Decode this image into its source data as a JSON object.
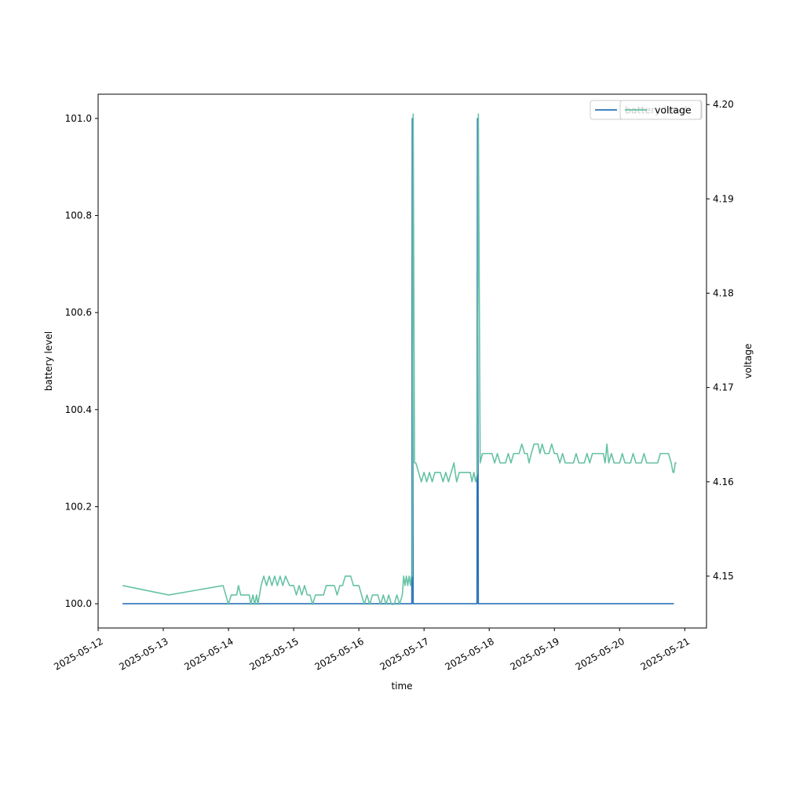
{
  "chart_data": {
    "type": "line",
    "title": "",
    "xlabel": "time",
    "ylabel_left": "battery level",
    "ylabel_right": "voltage",
    "x_tick_labels": [
      "2025-05-12",
      "2025-05-13",
      "2025-05-14",
      "2025-05-15",
      "2025-05-16",
      "2025-05-17",
      "2025-05-18",
      "2025-05-19",
      "2025-05-20",
      "2025-05-21"
    ],
    "x_range": [
      "2025-05-12T00:00",
      "2025-05-21T08:00"
    ],
    "y_left_ticks": [
      "100.0",
      "100.2",
      "100.4",
      "100.6",
      "100.8",
      "101.0"
    ],
    "y_left_range": [
      99.95,
      101.05
    ],
    "y_right_ticks": [
      "4.15",
      "4.16",
      "4.17",
      "4.18",
      "4.19",
      "4.20"
    ],
    "y_right_range": [
      4.1445,
      4.2011
    ],
    "grid": false,
    "legend_position": "top-right",
    "series": [
      {
        "name": "battery level",
        "axis": "left",
        "color": "#2a72b8",
        "points": [
          [
            "2025-05-12T09:00",
            100.0
          ],
          [
            "2025-05-16T19:30",
            100.0
          ],
          [
            "2025-05-16T19:40",
            101.0
          ],
          [
            "2025-05-16T20:00",
            100.0
          ],
          [
            "2025-05-17T19:30",
            100.0
          ],
          [
            "2025-05-17T19:40",
            101.0
          ],
          [
            "2025-05-17T20:00",
            100.0
          ],
          [
            "2025-05-20T20:00",
            100.0
          ]
        ]
      },
      {
        "name": "voltage",
        "axis": "right",
        "color": "#66c2a5",
        "points": [
          [
            "2025-05-12T09:00",
            4.149
          ],
          [
            "2025-05-13T02:00",
            4.148
          ],
          [
            "2025-05-13T22:00",
            4.149
          ],
          [
            "2025-05-13T23:00",
            4.148
          ],
          [
            "2025-05-14T00:00",
            4.147
          ],
          [
            "2025-05-14T01:00",
            4.148
          ],
          [
            "2025-05-14T03:00",
            4.148
          ],
          [
            "2025-05-14T03:40",
            4.149
          ],
          [
            "2025-05-14T04:30",
            4.148
          ],
          [
            "2025-05-14T07:40",
            4.148
          ],
          [
            "2025-05-14T08:10",
            4.147
          ],
          [
            "2025-05-14T09:00",
            4.148
          ],
          [
            "2025-05-14T09:40",
            4.147
          ],
          [
            "2025-05-14T10:20",
            4.148
          ],
          [
            "2025-05-14T10:50",
            4.147
          ],
          [
            "2025-05-14T12:00",
            4.149
          ],
          [
            "2025-05-14T13:00",
            4.15
          ],
          [
            "2025-05-14T14:00",
            4.149
          ],
          [
            "2025-05-14T15:00",
            4.15
          ],
          [
            "2025-05-14T16:00",
            4.149
          ],
          [
            "2025-05-14T17:00",
            4.15
          ],
          [
            "2025-05-14T18:00",
            4.149
          ],
          [
            "2025-05-14T19:00",
            4.15
          ],
          [
            "2025-05-14T20:00",
            4.149
          ],
          [
            "2025-05-14T21:00",
            4.15
          ],
          [
            "2025-05-14T22:30",
            4.149
          ],
          [
            "2025-05-15T00:00",
            4.149
          ],
          [
            "2025-05-15T01:00",
            4.148
          ],
          [
            "2025-05-15T02:00",
            4.149
          ],
          [
            "2025-05-15T03:00",
            4.148
          ],
          [
            "2025-05-15T04:00",
            4.149
          ],
          [
            "2025-05-15T05:00",
            4.148
          ],
          [
            "2025-05-15T06:00",
            4.148
          ],
          [
            "2025-05-15T07:00",
            4.147
          ],
          [
            "2025-05-15T08:00",
            4.148
          ],
          [
            "2025-05-15T11:00",
            4.148
          ],
          [
            "2025-05-15T12:00",
            4.149
          ],
          [
            "2025-05-15T15:00",
            4.149
          ],
          [
            "2025-05-15T16:00",
            4.148
          ],
          [
            "2025-05-15T17:00",
            4.149
          ],
          [
            "2025-05-15T18:00",
            4.149
          ],
          [
            "2025-05-15T19:00",
            4.15
          ],
          [
            "2025-05-15T21:00",
            4.15
          ],
          [
            "2025-05-15T22:00",
            4.149
          ],
          [
            "2025-05-16T00:00",
            4.149
          ],
          [
            "2025-05-16T01:00",
            4.148
          ],
          [
            "2025-05-16T02:00",
            4.147
          ],
          [
            "2025-05-16T03:00",
            4.148
          ],
          [
            "2025-05-16T04:00",
            4.147
          ],
          [
            "2025-05-16T05:00",
            4.148
          ],
          [
            "2025-05-16T07:00",
            4.148
          ],
          [
            "2025-05-16T08:00",
            4.147
          ],
          [
            "2025-05-16T09:00",
            4.148
          ],
          [
            "2025-05-16T10:00",
            4.147
          ],
          [
            "2025-05-16T11:00",
            4.148
          ],
          [
            "2025-05-16T12:00",
            4.147
          ],
          [
            "2025-05-16T13:00",
            4.147
          ],
          [
            "2025-05-16T14:00",
            4.148
          ],
          [
            "2025-05-16T15:00",
            4.147
          ],
          [
            "2025-05-16T16:00",
            4.148
          ],
          [
            "2025-05-16T16:30",
            4.15
          ],
          [
            "2025-05-16T17:00",
            4.149
          ],
          [
            "2025-05-16T17:30",
            4.15
          ],
          [
            "2025-05-16T18:00",
            4.149
          ],
          [
            "2025-05-16T18:30",
            4.15
          ],
          [
            "2025-05-16T19:00",
            4.149
          ],
          [
            "2025-05-16T19:20",
            4.15
          ],
          [
            "2025-05-16T19:40",
            4.15
          ],
          [
            "2025-05-16T20:00",
            4.199
          ],
          [
            "2025-05-16T20:30",
            4.162
          ],
          [
            "2025-05-16T21:00",
            4.162
          ],
          [
            "2025-05-16T22:00",
            4.161
          ],
          [
            "2025-05-16T23:00",
            4.16
          ],
          [
            "2025-05-17T00:00",
            4.161
          ],
          [
            "2025-05-17T01:00",
            4.16
          ],
          [
            "2025-05-17T02:00",
            4.161
          ],
          [
            "2025-05-17T03:00",
            4.16
          ],
          [
            "2025-05-17T04:00",
            4.161
          ],
          [
            "2025-05-17T06:00",
            4.161
          ],
          [
            "2025-05-17T07:00",
            4.16
          ],
          [
            "2025-05-17T08:00",
            4.161
          ],
          [
            "2025-05-17T09:00",
            4.16
          ],
          [
            "2025-05-17T10:00",
            4.161
          ],
          [
            "2025-05-17T11:00",
            4.162
          ],
          [
            "2025-05-17T12:00",
            4.16
          ],
          [
            "2025-05-17T13:00",
            4.161
          ],
          [
            "2025-05-17T17:00",
            4.161
          ],
          [
            "2025-05-17T17:40",
            4.16
          ],
          [
            "2025-05-17T18:20",
            4.161
          ],
          [
            "2025-05-17T19:00",
            4.16
          ],
          [
            "2025-05-17T19:40",
            4.161
          ],
          [
            "2025-05-17T20:00",
            4.199
          ],
          [
            "2025-05-17T20:40",
            4.162
          ],
          [
            "2025-05-17T21:30",
            4.163
          ],
          [
            "2025-05-18T01:00",
            4.163
          ],
          [
            "2025-05-18T02:00",
            4.162
          ],
          [
            "2025-05-18T03:00",
            4.163
          ],
          [
            "2025-05-18T04:00",
            4.162
          ],
          [
            "2025-05-18T06:00",
            4.162
          ],
          [
            "2025-05-18T07:00",
            4.163
          ],
          [
            "2025-05-18T08:00",
            4.162
          ],
          [
            "2025-05-18T09:00",
            4.163
          ],
          [
            "2025-05-18T11:00",
            4.163
          ],
          [
            "2025-05-18T12:00",
            4.164
          ],
          [
            "2025-05-18T13:00",
            4.163
          ],
          [
            "2025-05-18T14:00",
            4.163
          ],
          [
            "2025-05-18T14:40",
            4.162
          ],
          [
            "2025-05-18T15:30",
            4.163
          ],
          [
            "2025-05-18T16:30",
            4.164
          ],
          [
            "2025-05-18T18:00",
            4.164
          ],
          [
            "2025-05-18T18:40",
            4.163
          ],
          [
            "2025-05-18T19:30",
            4.164
          ],
          [
            "2025-05-18T20:30",
            4.163
          ],
          [
            "2025-05-18T22:00",
            4.163
          ],
          [
            "2025-05-18T23:00",
            4.164
          ],
          [
            "2025-05-19T00:00",
            4.163
          ],
          [
            "2025-05-19T01:00",
            4.163
          ],
          [
            "2025-05-19T02:00",
            4.162
          ],
          [
            "2025-05-19T03:00",
            4.163
          ],
          [
            "2025-05-19T04:00",
            4.162
          ],
          [
            "2025-05-19T05:00",
            4.162
          ],
          [
            "2025-05-19T06:00",
            4.162
          ],
          [
            "2025-05-19T07:00",
            4.162
          ],
          [
            "2025-05-19T08:00",
            4.163
          ],
          [
            "2025-05-19T09:00",
            4.162
          ],
          [
            "2025-05-19T11:00",
            4.162
          ],
          [
            "2025-05-19T12:00",
            4.163
          ],
          [
            "2025-05-19T13:00",
            4.162
          ],
          [
            "2025-05-19T14:00",
            4.163
          ],
          [
            "2025-05-19T18:00",
            4.163
          ],
          [
            "2025-05-19T18:40",
            4.162
          ],
          [
            "2025-05-19T19:20",
            4.164
          ],
          [
            "2025-05-19T20:00",
            4.162
          ],
          [
            "2025-05-19T21:00",
            4.163
          ],
          [
            "2025-05-19T22:00",
            4.162
          ],
          [
            "2025-05-20T00:00",
            4.162
          ],
          [
            "2025-05-20T01:00",
            4.163
          ],
          [
            "2025-05-20T02:00",
            4.162
          ],
          [
            "2025-05-20T04:00",
            4.162
          ],
          [
            "2025-05-20T05:00",
            4.163
          ],
          [
            "2025-05-20T06:00",
            4.162
          ],
          [
            "2025-05-20T08:00",
            4.162
          ],
          [
            "2025-05-20T09:00",
            4.163
          ],
          [
            "2025-05-20T10:00",
            4.162
          ],
          [
            "2025-05-20T14:00",
            4.162
          ],
          [
            "2025-05-20T15:00",
            4.163
          ],
          [
            "2025-05-20T18:00",
            4.163
          ],
          [
            "2025-05-20T19:00",
            4.162
          ],
          [
            "2025-05-20T19:40",
            4.161
          ],
          [
            "2025-05-20T20:00",
            4.161
          ],
          [
            "2025-05-20T20:30",
            4.162
          ],
          [
            "2025-05-20T21:00",
            4.162
          ]
        ]
      }
    ]
  }
}
